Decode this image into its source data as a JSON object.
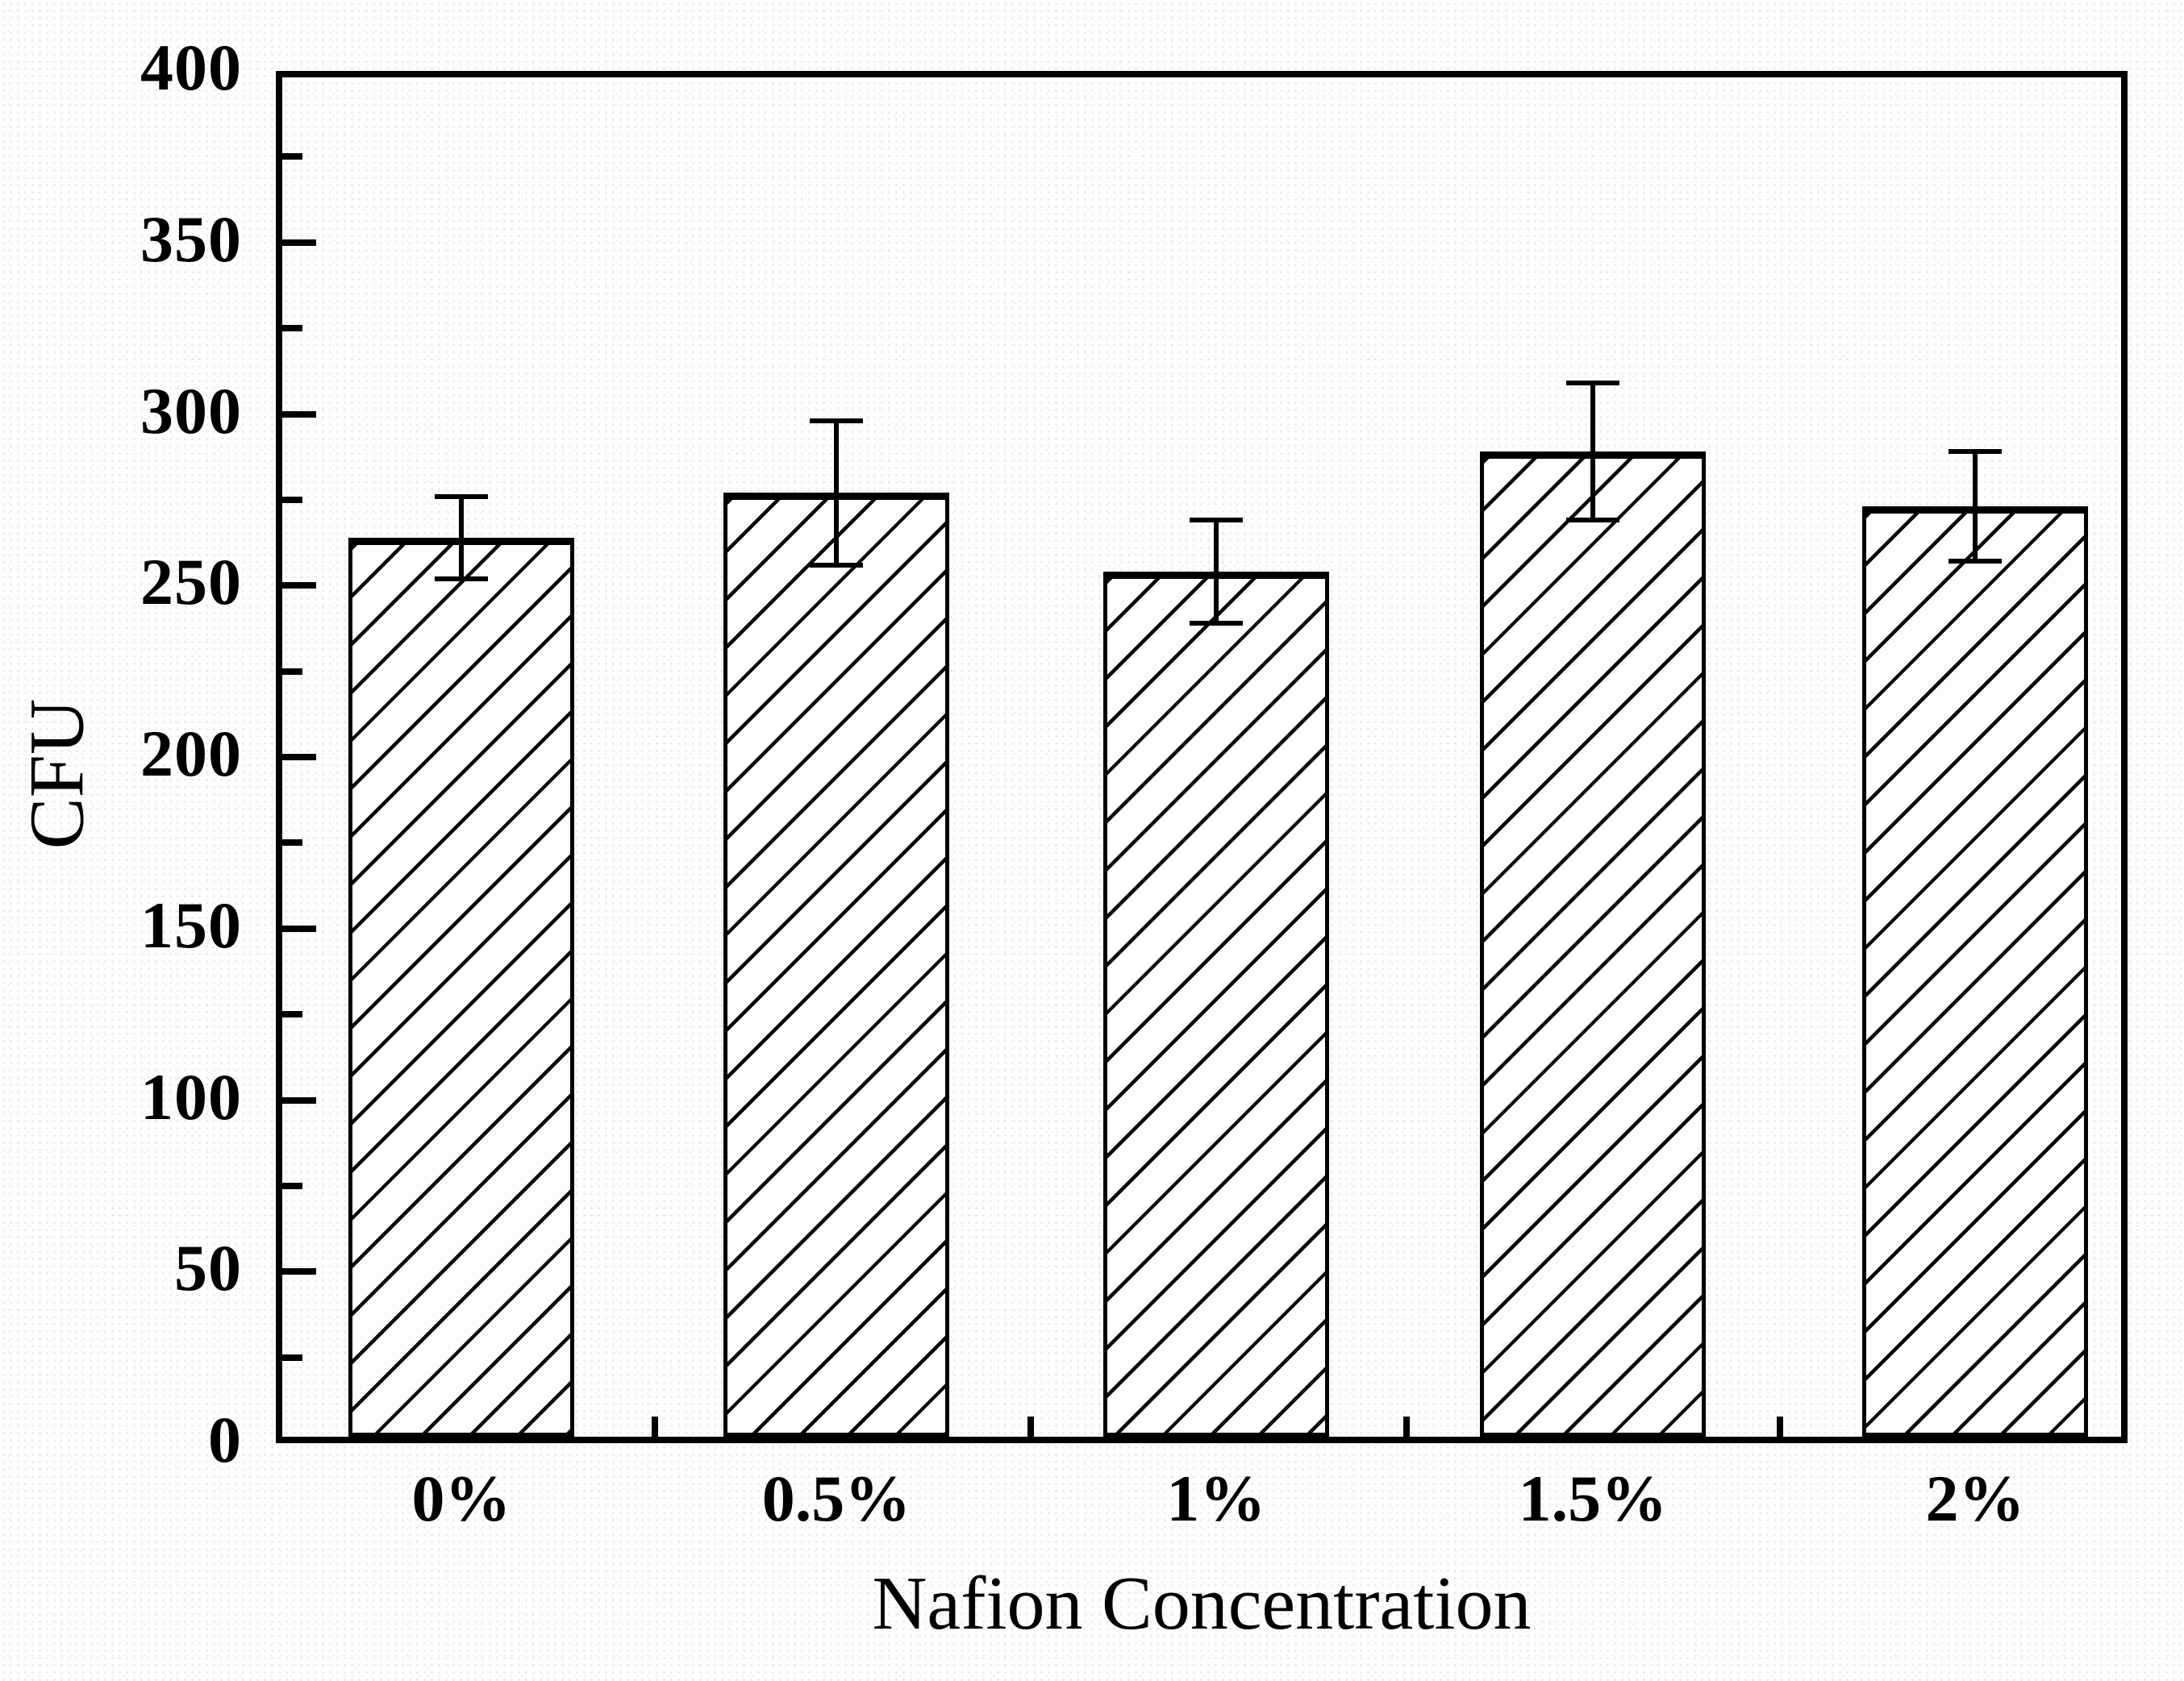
{
  "figure": {
    "ink_color": "#000000",
    "background_color": "#fdfdfc",
    "halftone_dot_color": "#aacdc3"
  },
  "chart_data": {
    "type": "bar",
    "title": "",
    "xlabel": "Nafion Concentration",
    "ylabel": "CFU",
    "categories": [
      "0%",
      "0.5%",
      "1%",
      "1.5%",
      "2%"
    ],
    "values": [
      264,
      277,
      254,
      289,
      273
    ],
    "error_low": [
      252,
      256,
      239,
      269,
      257
    ],
    "error_high": [
      276,
      298,
      269,
      309,
      289
    ],
    "ylim": [
      0,
      400
    ],
    "y_major_tick_labels": [
      "400",
      "350",
      "300",
      "250",
      "200",
      "150",
      "100",
      "50",
      "0"
    ],
    "y_major_tick_values": [
      400,
      350,
      300,
      250,
      200,
      150,
      100,
      50,
      0
    ],
    "y_minor_step": 25,
    "grid": false,
    "legend": null,
    "bar_style": "white fill, black diagonal hatch (/), black border",
    "error_bar_style": "black line with flat caps",
    "frame": "full box, ticks pointing inward on left and bottom axes"
  }
}
